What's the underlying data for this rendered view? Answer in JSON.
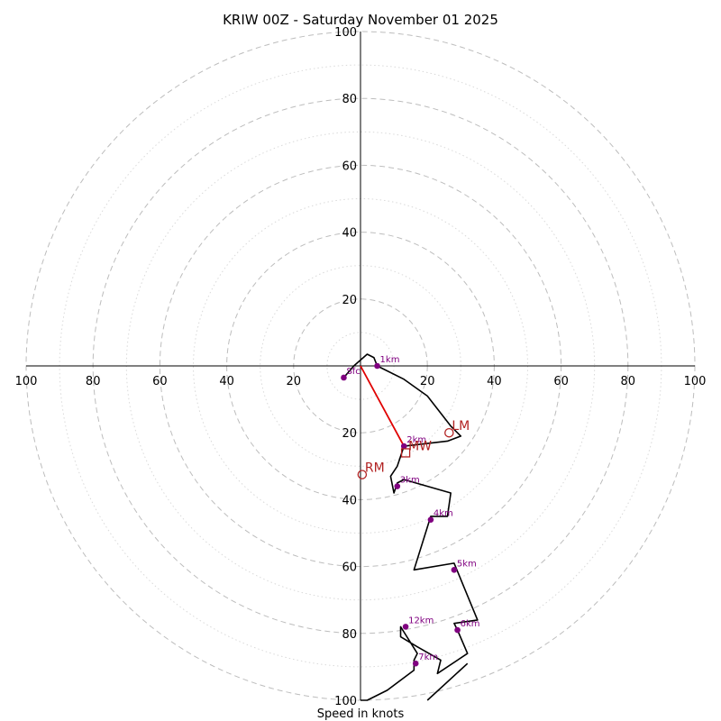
{
  "chart_data": {
    "type": "hodograph",
    "title": "KRIW 00Z - Saturday November 01 2025",
    "xlabel": "Speed in knots",
    "axis_range": [
      -100,
      100
    ],
    "rings_major": [
      20,
      40,
      60,
      80,
      100
    ],
    "rings_minor": [
      10,
      30,
      50,
      70,
      90
    ],
    "ticks_x": [
      "100",
      "80",
      "60",
      "40",
      "20",
      "20",
      "40",
      "60",
      "80",
      "100"
    ],
    "ticks_x_values": [
      -100,
      -80,
      -60,
      -40,
      -20,
      20,
      40,
      60,
      80,
      100
    ],
    "ticks_y": [
      "20",
      "40",
      "60",
      "80",
      "100"
    ],
    "ticks_y_values": [
      20,
      40,
      60,
      80,
      100
    ],
    "ticks_y_negative": [
      "20",
      "40",
      "60",
      "80",
      "100"
    ],
    "ticks_y_negative_values": [
      -20,
      -40,
      -60,
      -80,
      -100
    ],
    "wind_profile": [
      [
        -5,
        -3.5
      ],
      [
        -2,
        0
      ],
      [
        2,
        3.5
      ],
      [
        4,
        2.5
      ],
      [
        5,
        0
      ],
      [
        13,
        -4
      ],
      [
        20,
        -9
      ],
      [
        27,
        -18
      ],
      [
        30,
        -21
      ],
      [
        26,
        -22.5
      ],
      [
        13,
        -24
      ],
      [
        11,
        -30
      ],
      [
        9,
        -33
      ],
      [
        10,
        -38
      ],
      [
        11,
        -35
      ],
      [
        13,
        -34
      ],
      [
        27,
        -38
      ],
      [
        26,
        -45
      ],
      [
        21,
        -45
      ],
      [
        16,
        -61
      ],
      [
        28,
        -59
      ],
      [
        35,
        -76
      ],
      [
        28,
        -77
      ],
      [
        29,
        -79
      ],
      [
        32,
        -86
      ],
      [
        23,
        -92
      ],
      [
        24,
        -88
      ],
      [
        17,
        -84
      ],
      [
        12,
        -81
      ],
      [
        12,
        -78
      ],
      [
        17,
        -86
      ],
      [
        16,
        -88
      ],
      [
        16,
        -91
      ],
      [
        8,
        -97
      ],
      [
        2,
        -100
      ],
      [
        0,
        -100
      ]
    ],
    "wind_profile_tail": [
      [
        20,
        -100
      ],
      [
        32,
        -89
      ]
    ],
    "height_markers": [
      {
        "label": "Sfc",
        "u": -5,
        "v": -3.5
      },
      {
        "label": "1km",
        "u": 5,
        "v": 0
      },
      {
        "label": "2km",
        "u": 13,
        "v": -24
      },
      {
        "label": "3km",
        "u": 11,
        "v": -36
      },
      {
        "label": "4km",
        "u": 21,
        "v": -46
      },
      {
        "label": "5km",
        "u": 28,
        "v": -61
      },
      {
        "label": "6km",
        "u": 29,
        "v": -79
      },
      {
        "label": "7km",
        "u": 16.5,
        "v": -89
      },
      {
        "label": "12km",
        "u": 13.5,
        "v": -78
      }
    ],
    "storm_motions": [
      {
        "label": "LM",
        "u": 26.5,
        "v": -20,
        "shape": "circle"
      },
      {
        "label": "MW",
        "u": 13.5,
        "v": -26,
        "shape": "square"
      },
      {
        "label": "RM",
        "u": 0.5,
        "v": -32.5,
        "shape": "circle"
      }
    ],
    "shear_vector": {
      "from": [
        0,
        0
      ],
      "to": [
        13,
        -24
      ]
    },
    "colors": {
      "profile": "#000000",
      "markers": "#800080",
      "storm_motion": "#b22222",
      "shear": "#e00000",
      "grid": "#bdbdbd"
    }
  }
}
